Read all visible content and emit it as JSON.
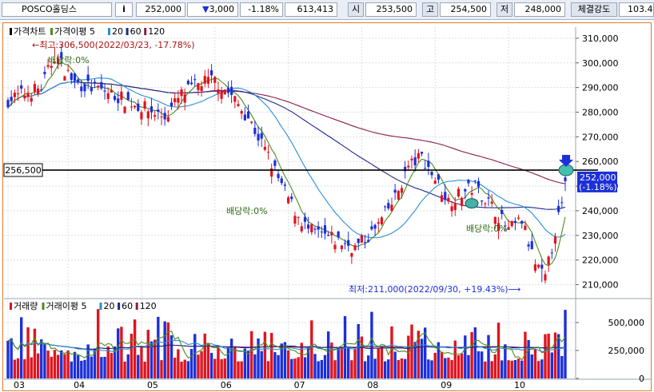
{
  "header": {
    "stock_name": "POSCO홀딩스",
    "info_button": "i",
    "price": "252,000",
    "change_symbol": "▼",
    "change": "3,000",
    "change_rate": "-1.18%",
    "volume": "613,413",
    "open_label": "시",
    "open": "253,500",
    "high_label": "고",
    "high": "254,500",
    "low_label": "저",
    "low": "248,000",
    "strength_label": "체결강도",
    "strength": "103.4"
  },
  "price_panel": {
    "legend": [
      {
        "label": "가격차트",
        "color": "#000000"
      },
      {
        "label": "가격이평 5",
        "color": "#4c8c1c"
      },
      {
        "label": "20",
        "color": "#2a8fd4"
      },
      {
        "label": "60",
        "color": "#1c2a8c"
      },
      {
        "label": "120",
        "color": "#8c1c4a"
      }
    ],
    "yticks": [
      210000,
      220000,
      230000,
      240000,
      250000,
      260000,
      270000,
      280000,
      290000,
      300000,
      310000
    ],
    "ytick_labels": [
      "210,000",
      "220,000",
      "230,000",
      "240,000",
      "250,000",
      "260,000",
      "270,000",
      "280,000",
      "290,000",
      "300,000",
      "310,000"
    ],
    "ylim": [
      205000,
      314500
    ],
    "hline_value": 256500,
    "hline_label": "256,500",
    "current_price_label": "252,000",
    "current_change_label": "(-1.18%)",
    "annotations": {
      "high": "←최고:306,500(2022/03/23, -17.78%)",
      "low": "최저:211,000(2022/09/30, +19.43%)⟶",
      "dividend": "배당락:0%"
    }
  },
  "volume_panel": {
    "legend": [
      {
        "label": "거래량",
        "color": "#d01818"
      },
      {
        "label": "거래이평 5",
        "color": "#4c8c1c"
      },
      {
        "label": "20",
        "color": "#2a8fd4"
      },
      {
        "label": "60",
        "color": "#1c2a8c"
      },
      {
        "label": "120",
        "color": "#8c1c4a"
      }
    ],
    "yticks": [
      0,
      250000,
      500000
    ],
    "ytick_labels": [
      "0",
      "250,000",
      "500,000"
    ],
    "ylim": [
      0,
      700000
    ]
  },
  "x_axis": {
    "month_labels": [
      "03",
      "04",
      "05",
      "06",
      "07",
      "08",
      "09",
      "10"
    ]
  },
  "colors": {
    "up": "#e0141e",
    "down": "#1c30d8",
    "ma5": "#4c8c1c",
    "ma20": "#2a8fd4",
    "ma60": "#1c2a8c",
    "ma120": "#8c1c4a",
    "frame": "#e07a2f"
  },
  "chart_data": {
    "type": "candlestick",
    "period": "2022-03 to 2022-10",
    "price_anchors": [
      {
        "month": "03",
        "close": 285000
      },
      {
        "month": "03 high",
        "close": 306500
      },
      {
        "month": "04",
        "close": 290000
      },
      {
        "month": "05",
        "close": 282000
      },
      {
        "month": "06 start",
        "close": 288000
      },
      {
        "month": "06 end",
        "close": 240000
      },
      {
        "month": "07",
        "close": 225000
      },
      {
        "month": "08",
        "close": 262000
      },
      {
        "month": "09",
        "close": 245000
      },
      {
        "month": "09/30 low",
        "close": 211000
      },
      {
        "month": "10 end",
        "close": 252000
      }
    ],
    "last": {
      "open": 253500,
      "high": 254500,
      "low": 248000,
      "close": 252000
    }
  }
}
